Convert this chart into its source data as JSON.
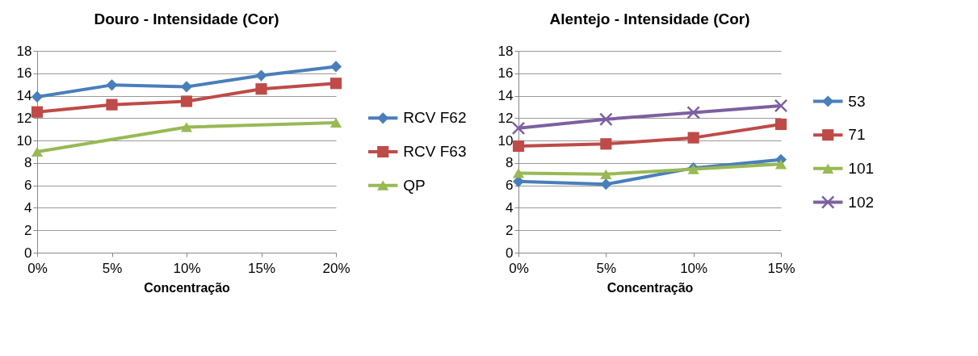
{
  "chart_data": [
    {
      "type": "line",
      "title": "Douro - Intensidade (Cor)",
      "xlabel": "Concentração",
      "categories": [
        "0%",
        "5%",
        "10%",
        "15%",
        "20%"
      ],
      "ylim": [
        0,
        18
      ],
      "yticks": [
        0,
        2,
        4,
        6,
        8,
        10,
        12,
        14,
        16,
        18
      ],
      "grid": "y",
      "legend": "right",
      "series": [
        {
          "name": "RCV F62",
          "color": "#4a7ebb",
          "marker": "diamond",
          "values": [
            13.9,
            14.95,
            14.8,
            15.8,
            16.6
          ]
        },
        {
          "name": "RCV F63",
          "color": "#be4b48",
          "marker": "square",
          "values": [
            12.55,
            13.2,
            13.5,
            14.6,
            15.1
          ]
        },
        {
          "name": "QP",
          "color": "#98b954",
          "marker": "triangle",
          "values": [
            9.0,
            null,
            11.2,
            null,
            11.6
          ]
        }
      ]
    },
    {
      "type": "line",
      "title": "Alentejo -  Intensidade (Cor)",
      "xlabel": "Concentração",
      "categories": [
        "0%",
        "5%",
        "10%",
        "15%"
      ],
      "ylim": [
        0,
        18
      ],
      "yticks": [
        0,
        2,
        4,
        6,
        8,
        10,
        12,
        14,
        16,
        18
      ],
      "grid": "y",
      "legend": "right",
      "series": [
        {
          "name": "53",
          "color": "#4a7ebb",
          "marker": "diamond",
          "values": [
            6.35,
            6.1,
            7.55,
            8.3
          ]
        },
        {
          "name": "71",
          "color": "#be4b48",
          "marker": "square",
          "values": [
            9.5,
            9.7,
            10.25,
            11.45
          ]
        },
        {
          "name": "101",
          "color": "#98b954",
          "marker": "triangle",
          "values": [
            7.1,
            7.0,
            7.45,
            7.9
          ]
        },
        {
          "name": "102",
          "color": "#7d60a0",
          "marker": "cross",
          "values": [
            11.1,
            11.9,
            12.5,
            13.1
          ]
        }
      ]
    }
  ]
}
